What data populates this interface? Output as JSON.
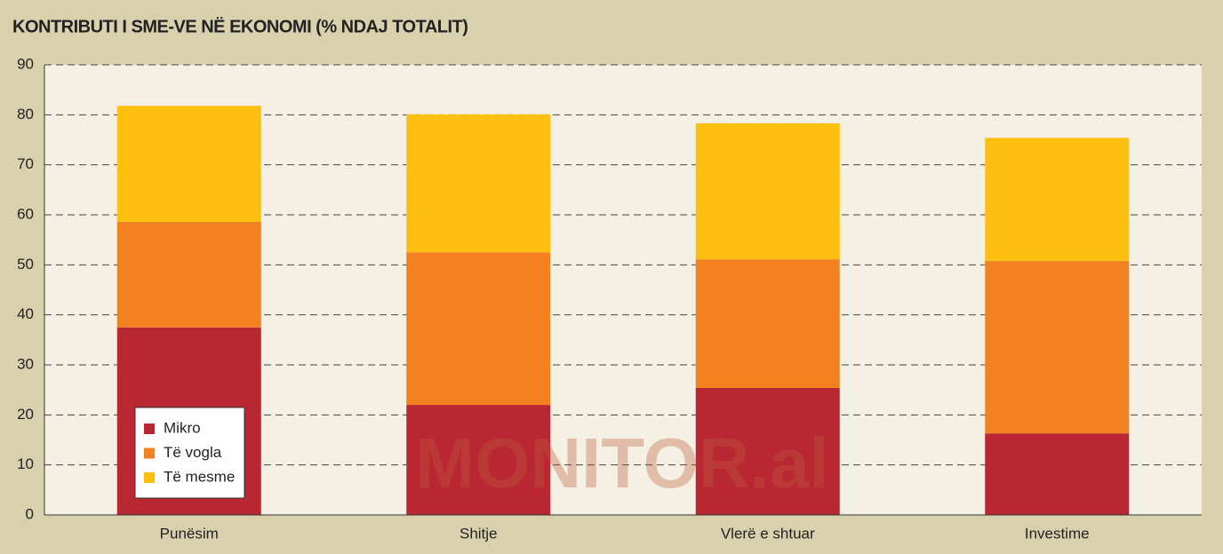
{
  "chart_data": {
    "type": "stacked_bar",
    "title": "KONTRIBUTI I SME-VE NË EKONOMI (% NDAJ TOTALIT)",
    "watermark": "MONITOR.al",
    "categories": [
      "Punësim",
      "Shitje",
      "Vlerë e shtuar",
      "Investime"
    ],
    "series": [
      {
        "name": "Mikro",
        "color": "#b92732",
        "values": [
          37.5,
          22.0,
          25.4,
          16.3
        ]
      },
      {
        "name": "Të vogla",
        "color": "#f38120",
        "values": [
          21.1,
          30.5,
          25.7,
          34.5
        ]
      },
      {
        "name": "Të mesme",
        "color": "#fdc010",
        "values": [
          23.2,
          27.6,
          27.2,
          24.6
        ]
      }
    ],
    "ylim": [
      0,
      90
    ],
    "yticks": [
      0,
      10,
      20,
      30,
      40,
      50,
      60,
      70,
      80,
      90
    ],
    "grid": true,
    "legend": "lower-left"
  }
}
